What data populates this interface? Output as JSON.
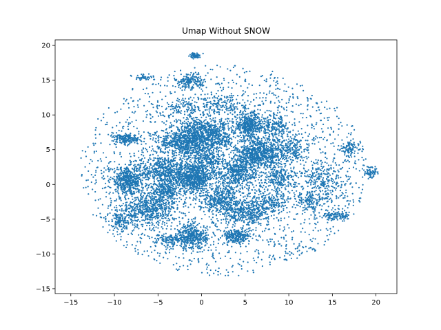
{
  "chart_data": {
    "type": "scatter",
    "title": "Umap Without SNOW",
    "xlabel": "",
    "ylabel": "",
    "xlim": [
      -16.8,
      22.4
    ],
    "ylim": [
      -15.7,
      20.8
    ],
    "xticks": [
      -15,
      -10,
      -5,
      0,
      5,
      10,
      15,
      20
    ],
    "yticks": [
      -15,
      -10,
      -5,
      0,
      5,
      10,
      15,
      20
    ],
    "grid": false,
    "color": "#1f77b4",
    "series": [
      {
        "clusters": [
          {
            "x": -0.8,
            "y": 6.8,
            "sx": 1.1,
            "sy": 1.4,
            "n": 700
          },
          {
            "x": -1.0,
            "y": 1.0,
            "sx": 1.2,
            "sy": 1.0,
            "n": 700
          },
          {
            "x": 6.5,
            "y": 4.5,
            "sx": 1.3,
            "sy": 1.2,
            "n": 700
          },
          {
            "x": 5.5,
            "y": 8.5,
            "sx": 0.9,
            "sy": 1.0,
            "n": 450
          },
          {
            "x": -8.5,
            "y": 0.5,
            "sx": 1.0,
            "sy": 0.9,
            "n": 450
          },
          {
            "x": -6.0,
            "y": -3.5,
            "sx": 1.5,
            "sy": 1.2,
            "n": 550
          },
          {
            "x": -1.0,
            "y": -7.5,
            "sx": 0.8,
            "sy": 0.9,
            "n": 380
          },
          {
            "x": 4.0,
            "y": -7.5,
            "sx": 0.8,
            "sy": 0.5,
            "n": 240
          },
          {
            "x": 5.0,
            "y": -4.0,
            "sx": 1.4,
            "sy": 0.9,
            "n": 380
          },
          {
            "x": -4.5,
            "y": 2.0,
            "sx": 1.5,
            "sy": 1.2,
            "n": 480
          },
          {
            "x": 2.0,
            "y": -2.0,
            "sx": 1.2,
            "sy": 1.0,
            "n": 380
          },
          {
            "x": 4.0,
            "y": 1.5,
            "sx": 1.2,
            "sy": 1.3,
            "n": 480
          },
          {
            "x": 2.0,
            "y": 7.0,
            "sx": 0.9,
            "sy": 1.2,
            "n": 320
          },
          {
            "x": -3.0,
            "y": 6.0,
            "sx": 1.3,
            "sy": 0.9,
            "n": 320
          },
          {
            "x": -8.5,
            "y": 6.5,
            "sx": 0.8,
            "sy": 0.4,
            "n": 180
          },
          {
            "x": 10.0,
            "y": 5.0,
            "sx": 1.1,
            "sy": 1.0,
            "n": 220
          },
          {
            "x": 9.0,
            "y": 1.0,
            "sx": 0.9,
            "sy": 1.0,
            "n": 200
          },
          {
            "x": 8.5,
            "y": 8.5,
            "sx": 0.8,
            "sy": 1.0,
            "n": 160
          },
          {
            "x": 14.0,
            "y": 0.5,
            "sx": 1.4,
            "sy": 1.4,
            "n": 220
          },
          {
            "x": 15.5,
            "y": -4.5,
            "sx": 0.8,
            "sy": 0.3,
            "n": 110
          },
          {
            "x": 17.0,
            "y": 5.0,
            "sx": 0.5,
            "sy": 0.6,
            "n": 90
          },
          {
            "x": 19.5,
            "y": 1.8,
            "sx": 0.4,
            "sy": 0.4,
            "n": 70
          },
          {
            "x": 12.5,
            "y": -2.5,
            "sx": 0.9,
            "sy": 0.8,
            "n": 120
          },
          {
            "x": -1.5,
            "y": 14.8,
            "sx": 0.8,
            "sy": 0.5,
            "n": 160
          },
          {
            "x": -6.5,
            "y": 15.4,
            "sx": 0.6,
            "sy": 0.2,
            "n": 45
          },
          {
            "x": -0.8,
            "y": 18.5,
            "sx": 0.3,
            "sy": 0.2,
            "n": 70
          },
          {
            "x": -4.0,
            "y": -1.0,
            "sx": 1.0,
            "sy": 0.8,
            "n": 260
          },
          {
            "x": 0.5,
            "y": 3.5,
            "sx": 1.0,
            "sy": 0.9,
            "n": 260
          },
          {
            "x": 8.0,
            "y": -2.5,
            "sx": 1.0,
            "sy": 0.9,
            "n": 180
          },
          {
            "x": -9.0,
            "y": -5.0,
            "sx": 0.8,
            "sy": 0.9,
            "n": 140
          },
          {
            "x": -3.5,
            "y": -8.0,
            "sx": 1.0,
            "sy": 0.4,
            "n": 140
          },
          {
            "x": 2.5,
            "y": 11.5,
            "sx": 1.5,
            "sy": 0.9,
            "n": 140
          },
          {
            "x": -2.0,
            "y": 11.0,
            "sx": 1.4,
            "sy": 0.8,
            "n": 120
          }
        ],
        "scatter_points": 2000,
        "scatter_center": [
          2.5,
          2.0
        ],
        "scatter_radius": [
          16.5,
          15.2
        ]
      }
    ]
  }
}
